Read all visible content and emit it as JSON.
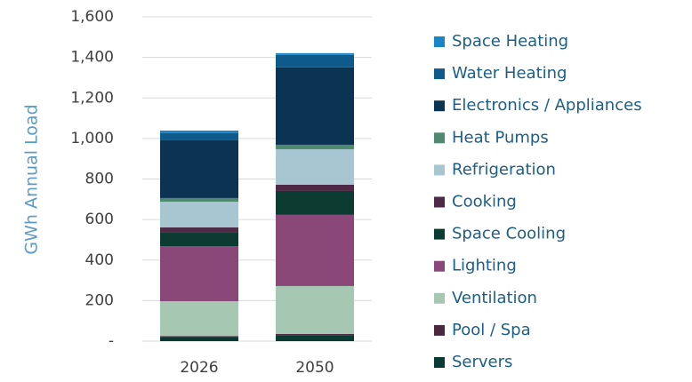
{
  "chart_data": {
    "type": "stacked_bar",
    "y_axis_label": "GWh Annual Load",
    "categories": [
      "2026",
      "2050"
    ],
    "series": [
      {
        "name": "Servers",
        "color": "#0b3a32",
        "values": [
          20,
          30
        ]
      },
      {
        "name": "Pool / Spa",
        "color": "#4a2840",
        "values": [
          5,
          5
        ]
      },
      {
        "name": "Ventilation",
        "color": "#a6c8b3",
        "values": [
          172,
          237
        ]
      },
      {
        "name": "Lighting",
        "color": "#8a4878",
        "values": [
          272,
          351
        ]
      },
      {
        "name": "Space Cooling",
        "color": "#0c3b31",
        "values": [
          66,
          118
        ]
      },
      {
        "name": "Cooking",
        "color": "#4f2a46",
        "values": [
          26,
          31
        ]
      },
      {
        "name": "Refrigeration",
        "color": "#a7c6d2",
        "values": [
          127,
          175
        ]
      },
      {
        "name": "Heat Pumps",
        "color": "#4f8a6e",
        "values": [
          18,
          22
        ]
      },
      {
        "name": "Electronics / Appliances",
        "color": "#0b3352",
        "values": [
          285,
          382
        ]
      },
      {
        "name": "Water Heating",
        "color": "#0e5a8a",
        "values": [
          35,
          61
        ]
      },
      {
        "name": "Space Heating",
        "color": "#1a86c8",
        "values": [
          13,
          9
        ]
      }
    ],
    "ylim": [
      0,
      1600
    ],
    "yticks": [
      {
        "value": 0,
        "label": "-"
      },
      200,
      400,
      600,
      800,
      {
        "value": 1000,
        "label": "1,000"
      },
      {
        "value": 1200,
        "label": "1,200"
      },
      {
        "value": 1400,
        "label": "1,400"
      },
      {
        "value": 1600,
        "label": "1,600"
      }
    ],
    "grid": true,
    "legend": "right"
  }
}
